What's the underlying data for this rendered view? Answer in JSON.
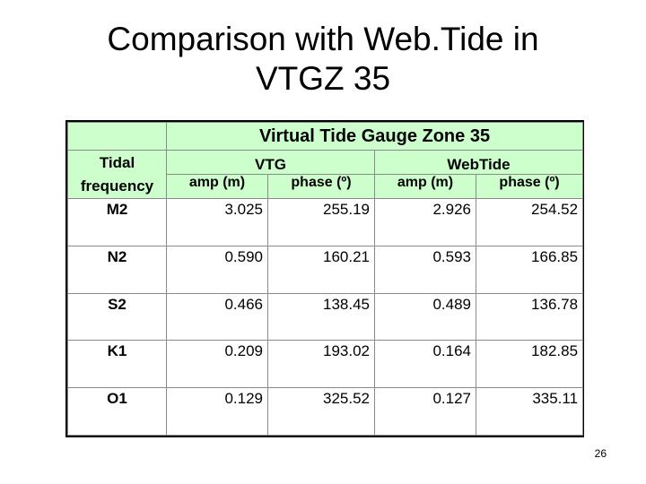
{
  "slide": {
    "title_line1": "Comparison with Web.Tide in",
    "title_line2": "VTGZ 35",
    "page_number": "26"
  },
  "table": {
    "caption": "Virtual Tide Gauge Zone 35",
    "row_header_line1": "Tidal",
    "row_header_line2": "frequency",
    "groups": [
      "VTG",
      "WebTide"
    ],
    "columns": [
      "amp (m)",
      "phase (º)",
      "amp (m)",
      "phase (º)"
    ],
    "rows": [
      {
        "label": "M2",
        "values": [
          "3.025",
          "255.19",
          "2.926",
          "254.52"
        ]
      },
      {
        "label": "N2",
        "values": [
          "0.590",
          "160.21",
          "0.593",
          "166.85"
        ]
      },
      {
        "label": "S2",
        "values": [
          "0.466",
          "138.45",
          "0.489",
          "136.78"
        ]
      },
      {
        "label": "K1",
        "values": [
          "0.209",
          "193.02",
          "0.164",
          "182.85"
        ]
      },
      {
        "label": "O1",
        "values": [
          "0.129",
          "325.52",
          "0.127",
          "335.11"
        ]
      }
    ],
    "header_color": "#ccffcc"
  }
}
